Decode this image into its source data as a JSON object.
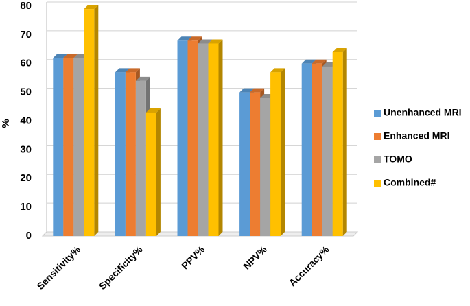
{
  "chart_data": {
    "type": "bar3d",
    "y_label": "%",
    "categories": [
      "Sensitivity%",
      "Specificity%",
      "PPV%",
      "NPV%",
      "Accuracy%"
    ],
    "series": [
      {
        "name": "Unenhanced MRI",
        "color": "#5b9bd5",
        "values": [
          62,
          57,
          68,
          50,
          60
        ]
      },
      {
        "name": "Enhanced MRI",
        "color": "#ed7d31",
        "values": [
          62,
          57,
          68,
          50,
          60
        ]
      },
      {
        "name": "TOMO",
        "color": "#a5a5a5",
        "values": [
          62,
          54,
          67,
          48,
          59
        ]
      },
      {
        "name": "Combined#",
        "color": "#ffc000",
        "values": [
          79,
          43,
          67,
          57,
          64
        ]
      }
    ],
    "ylim": [
      0,
      80
    ],
    "yticks": [
      0,
      10,
      20,
      30,
      40,
      50,
      60,
      70,
      80
    ],
    "grid": true,
    "legend": "right"
  }
}
